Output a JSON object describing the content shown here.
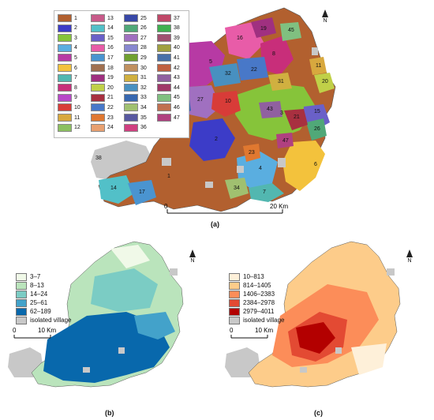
{
  "panel_a": {
    "caption": "(a)",
    "scale_label_left": "0",
    "scale_label_right": "20 Km",
    "north": "N",
    "legend_ids": [
      "1",
      "2",
      "3",
      "4",
      "5",
      "6",
      "7",
      "8",
      "9",
      "10",
      "11",
      "12",
      "13",
      "14",
      "15",
      "16",
      "17",
      "18",
      "19",
      "20",
      "21",
      "22",
      "23",
      "24",
      "25",
      "26",
      "27",
      "28",
      "29",
      "30",
      "31",
      "32",
      "33",
      "34",
      "35",
      "36",
      "37",
      "38",
      "39",
      "40",
      "41",
      "42",
      "43",
      "44",
      "45",
      "46",
      "47"
    ],
    "legend_colors": [
      "#b2602f",
      "#3c3cc8",
      "#86c43a",
      "#5aaee0",
      "#b73aa4",
      "#f3c23c",
      "#52b7b0",
      "#c82e7a",
      "#b848c8",
      "#d83c38",
      "#d8a83e",
      "#8cc060",
      "#c85a8a",
      "#52c0c8",
      "#6a60c8",
      "#e85ca8",
      "#4a94d0",
      "#a07050",
      "#a03080",
      "#c0d048",
      "#a83040",
      "#4878c8",
      "#e07830",
      "#e8a070",
      "#3848a8",
      "#50a878",
      "#a070c0",
      "#8888d0",
      "#70a030",
      "#c09060",
      "#d0b040",
      "#4890c0",
      "#3868b0",
      "#a0c070",
      "#5858a0",
      "#d04080",
      "#c04868",
      "#40b050",
      "#a05070",
      "#a0a040",
      "#4870a8",
      "#c06040",
      "#9060a0",
      "#a03868",
      "#80c080",
      "#c07050",
      "#b04080"
    ],
    "region_labels": [
      {
        "id": "1"
      },
      {
        "id": "2"
      },
      {
        "id": "3"
      },
      {
        "id": "4"
      },
      {
        "id": "5"
      },
      {
        "id": "6"
      },
      {
        "id": "7"
      },
      {
        "id": "8"
      },
      {
        "id": "9"
      },
      {
        "id": "10"
      },
      {
        "id": "11"
      },
      {
        "id": "14"
      },
      {
        "id": "15"
      },
      {
        "id": "16"
      },
      {
        "id": "17"
      },
      {
        "id": "19"
      },
      {
        "id": "20"
      },
      {
        "id": "21"
      },
      {
        "id": "22"
      },
      {
        "id": "23"
      },
      {
        "id": "26"
      },
      {
        "id": "27"
      },
      {
        "id": "31"
      },
      {
        "id": "32"
      },
      {
        "id": "33"
      },
      {
        "id": "34"
      },
      {
        "id": "38"
      },
      {
        "id": "43"
      },
      {
        "id": "45"
      },
      {
        "id": "47"
      }
    ]
  },
  "panel_b": {
    "caption": "(b)",
    "north": "N",
    "scale_label_left": "0",
    "scale_label_right": "10 Km",
    "legend": [
      {
        "label": "3–7",
        "color": "#f0f9e8"
      },
      {
        "label": "8–13",
        "color": "#bae4bc"
      },
      {
        "label": "14–24",
        "color": "#7bccc4"
      },
      {
        "label": "25–61",
        "color": "#43a2ca"
      },
      {
        "label": "62–189",
        "color": "#0868ac"
      },
      {
        "label": "isolated village",
        "color": "#c8c8c8"
      }
    ]
  },
  "panel_c": {
    "caption": "(c)",
    "north": "N",
    "scale_label_left": "0",
    "scale_label_right": "10 Km",
    "legend": [
      {
        "label": "10–813",
        "color": "#fef0d9"
      },
      {
        "label": "814–1405",
        "color": "#fdcc8a"
      },
      {
        "label": "1406–2383",
        "color": "#fc8d59"
      },
      {
        "label": "2384–2978",
        "color": "#e34a33"
      },
      {
        "label": "2979–4011",
        "color": "#b30000"
      },
      {
        "label": "isolated village",
        "color": "#c8c8c8"
      }
    ]
  }
}
